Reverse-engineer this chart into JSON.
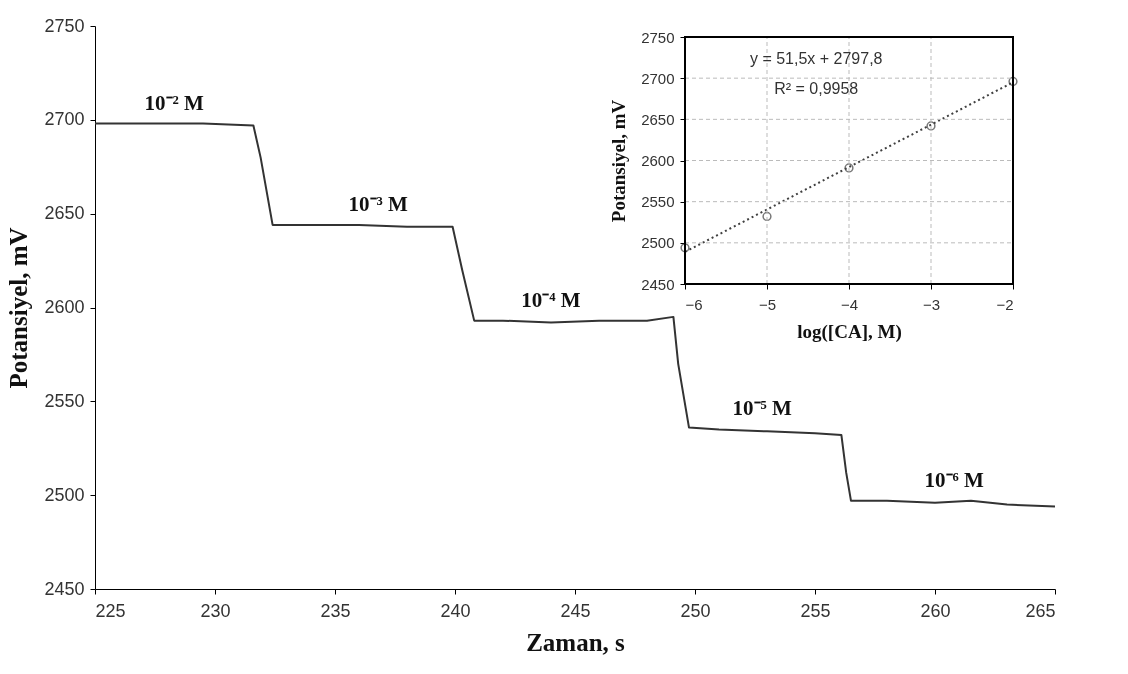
{
  "chart_data": [
    {
      "type": "line",
      "xlabel": "Zaman, s",
      "ylabel": "Potansiyel, mV",
      "xlim": [
        225,
        265
      ],
      "ylim": [
        2450,
        2750
      ],
      "xticks": [
        225,
        230,
        235,
        240,
        245,
        250,
        255,
        260,
        265
      ],
      "yticks": [
        2450,
        2500,
        2550,
        2600,
        2650,
        2700,
        2750
      ],
      "grid": false,
      "series": [
        {
          "color": "#333333",
          "line_style": "solid",
          "x": [
            225,
            226.5,
            228,
            229.5,
            231.6,
            231.9,
            232.4,
            234,
            236,
            238,
            239.9,
            240.3,
            240.8,
            242,
            244,
            246,
            248,
            249.1,
            249.3,
            249.75,
            251,
            253,
            255,
            256.1,
            256.3,
            256.5,
            258,
            260,
            261.5,
            263,
            265
          ],
          "values": [
            2698,
            2698,
            2698,
            2698,
            2697,
            2680,
            2644,
            2644,
            2644,
            2643,
            2643,
            2620,
            2593,
            2593,
            2592,
            2593,
            2593,
            2595,
            2570,
            2536,
            2535,
            2534,
            2533,
            2532,
            2512,
            2497,
            2497,
            2496,
            2497,
            2495,
            2494
          ]
        }
      ],
      "annotations": [
        {
          "text": "10⁻² M",
          "x": 228.3,
          "y": 2698
        },
        {
          "text": "10⁻³ M",
          "x": 236.8,
          "y": 2644
        },
        {
          "text": "10⁻⁴ M",
          "x": 244.0,
          "y": 2593
        },
        {
          "text": "10⁻⁵ M",
          "x": 252.8,
          "y": 2535
        },
        {
          "text": "10⁻⁶ M",
          "x": 260.8,
          "y": 2497
        }
      ]
    },
    {
      "type": "scatter",
      "xlabel": "log([CA], M)",
      "ylabel": "Potansiyel, mV",
      "xlim": [
        -6,
        -2
      ],
      "ylim": [
        2450,
        2750
      ],
      "xticks": [
        -6,
        -5,
        -4,
        -3,
        -2
      ],
      "yticks": [
        2450,
        2500,
        2550,
        2600,
        2650,
        2700,
        2750
      ],
      "grid": true,
      "marker": "circle",
      "series": [
        {
          "type": "scatter",
          "color": "#404040",
          "x": [
            -6,
            -5,
            -4,
            -3,
            -2
          ],
          "values": [
            2494,
            2532,
            2591,
            2642,
            2696
          ]
        },
        {
          "type": "line",
          "color": "#404040",
          "marker": "none",
          "line_style": "dotted",
          "x": [
            -6,
            -2
          ],
          "values": [
            2489,
            2695
          ]
        }
      ],
      "annotations": [
        "y = 51,5x + 2797,8",
        "R² = 0,9958"
      ]
    }
  ]
}
